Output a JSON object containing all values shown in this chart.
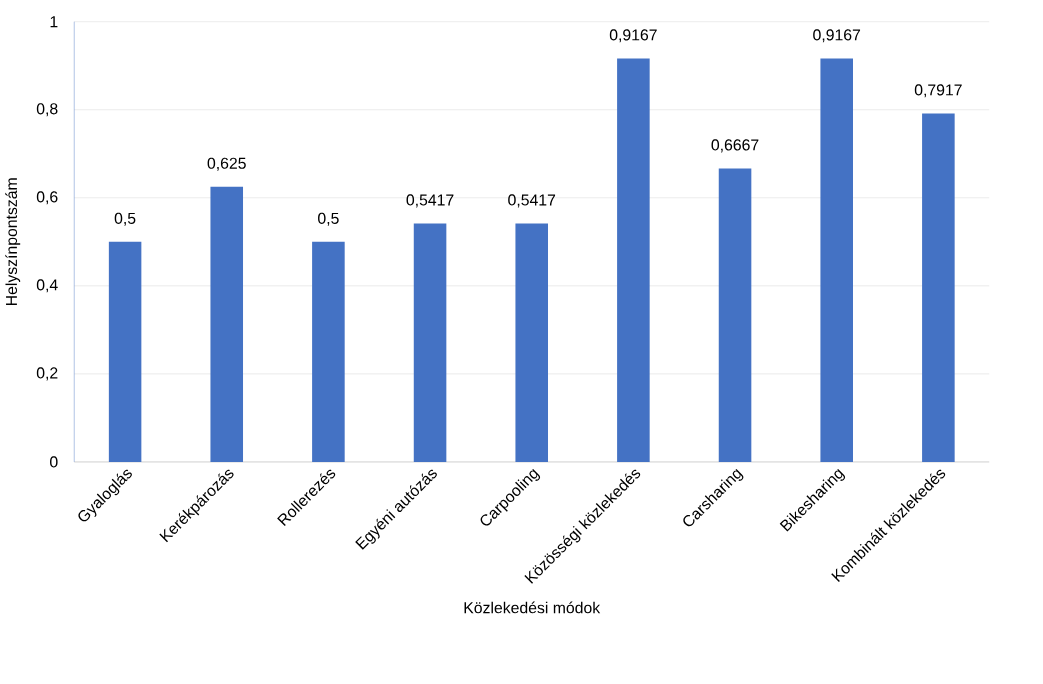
{
  "chart_data": {
    "type": "bar",
    "xlabel": "Közlekedési módok",
    "ylabel": "Helyszínpontszám",
    "categories": [
      "Gyaloglás",
      "Kerékpározás",
      "Rollerezés",
      "Egyéni autózás",
      "Carpooling",
      "Közösségi közlekedés",
      "Carsharing",
      "Bikesharing",
      "Kombinált közlekedés"
    ],
    "values": [
      0.5,
      0.625,
      0.5,
      0.5417,
      0.5417,
      0.9167,
      0.6667,
      0.9167,
      0.7917
    ],
    "value_labels": [
      "0,5",
      "0,625",
      "0,5",
      "0,5417",
      "0,5417",
      "0,9167",
      "0,6667",
      "0,9167",
      "0,7917"
    ],
    "color": "#4472c4",
    "ylim": [
      0,
      1
    ],
    "yticks": [
      0,
      {
        "value": 0.2,
        "label": "0,2"
      },
      {
        "value": 0.4,
        "label": "0,4"
      },
      {
        "value": 0.6,
        "label": "0,6"
      },
      {
        "value": 0.8,
        "label": "0,8"
      },
      1
    ],
    "grid": "y"
  }
}
